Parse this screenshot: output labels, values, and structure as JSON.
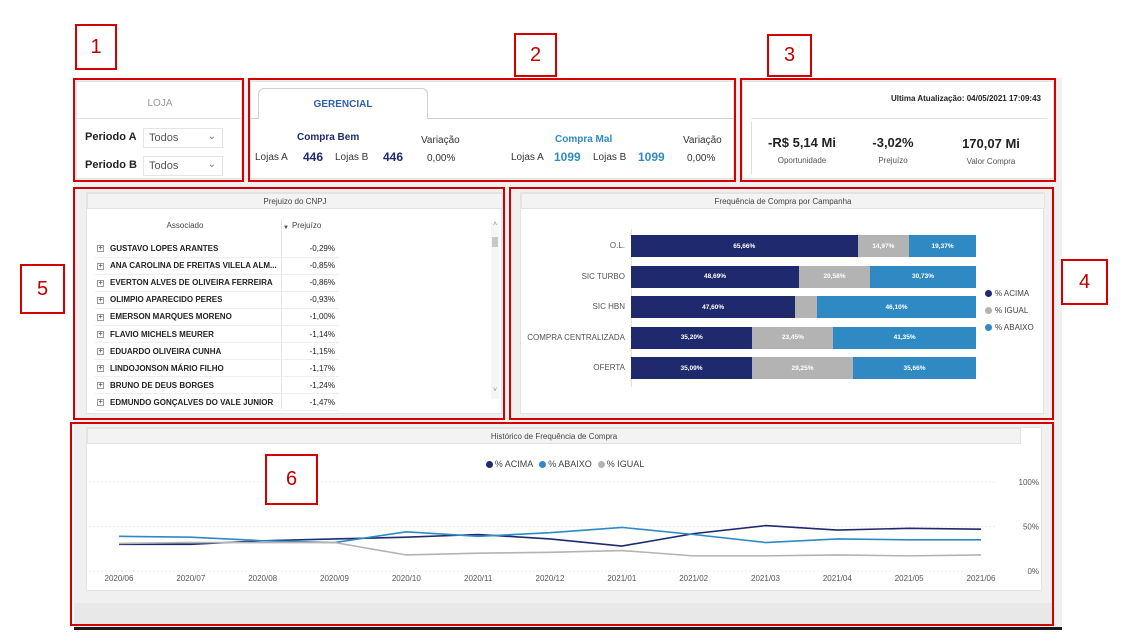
{
  "annotations": [
    "1",
    "2",
    "3",
    "4",
    "5",
    "6"
  ],
  "filters": {
    "tab_label": "LOJA",
    "periodo_a_label": "Periodo A",
    "periodo_a_value": "Todos",
    "periodo_b_label": "Periodo B",
    "periodo_b_value": "Todos"
  },
  "gerencial": {
    "tab_label": "GERENCIAL",
    "compra_bem": {
      "title": "Compra Bem",
      "lojas_a_label": "Lojas A",
      "lojas_a_value": "446",
      "lojas_b_label": "Lojas B",
      "lojas_b_value": "446",
      "variacao_label": "Variação",
      "variacao_value": "0,00%"
    },
    "compra_mal": {
      "title": "Compra Mal",
      "lojas_a_label": "Lojas A",
      "lojas_a_value": "1099",
      "lojas_b_label": "Lojas B",
      "lojas_b_value": "1099",
      "variacao_label": "Variação",
      "variacao_value": "0,00%"
    }
  },
  "kpis": {
    "last_update": "Ultima Atualização: 04/05/2021 17:09:43",
    "oportunidade": {
      "value": "-R$ 5,14 Mi",
      "label": "Oportunidade"
    },
    "prejuizo": {
      "value": "-3,02%",
      "label": "Prejuízo"
    },
    "valor_compra": {
      "value": "170,07 Mi",
      "label": "Valor Compra"
    }
  },
  "cnpj_table": {
    "title": "Prejuizo do CNPJ",
    "col_associado": "Associado",
    "col_prejuizo": "Prejuízo",
    "rows": [
      {
        "name": "GUSTAVO LOPES ARANTES",
        "value": "-0,29%"
      },
      {
        "name": "ANA CAROLINA DE FREITAS VILELA ALM...",
        "value": "-0,85%"
      },
      {
        "name": "EVERTON ALVES DE OLIVEIRA FERREIRA",
        "value": "-0,86%"
      },
      {
        "name": "OLIMPIO APARECIDO PERES",
        "value": "-0,93%"
      },
      {
        "name": "EMERSON MARQUES MORENO",
        "value": "-1,00%"
      },
      {
        "name": "FLAVIO MICHELS MEURER",
        "value": "-1,14%"
      },
      {
        "name": "EDUARDO OLIVEIRA CUNHA",
        "value": "-1,15%"
      },
      {
        "name": "LINDOJONSON MÁRIO FILHO",
        "value": "-1,17%"
      },
      {
        "name": "BRUNO DE DEUS BORGES",
        "value": "-1,24%"
      },
      {
        "name": "EDMUNDO GONÇALVES DO VALE JUNIOR",
        "value": "-1,47%"
      }
    ]
  },
  "colors": {
    "acima": "#1f2a6e",
    "igual": "#b3b3b3",
    "abaixo": "#2f8ac4"
  },
  "chart_data": [
    {
      "type": "bar",
      "orientation": "horizontal-stacked-100",
      "title": "Frequência de Compra por Campanha",
      "categories": [
        "O.L.",
        "SIC TURBO",
        "SIC HBN",
        "COMPRA CENTRALIZADA",
        "OFERTA"
      ],
      "series": [
        {
          "name": "% ACIMA",
          "values": [
            65.66,
            48.69,
            47.6,
            35.2,
            35.09
          ],
          "labels": [
            "65,66%",
            "48,69%",
            "47,60%",
            "35,20%",
            "35,09%"
          ]
        },
        {
          "name": "% IGUAL",
          "values": [
            14.97,
            20.58,
            6.3,
            23.45,
            29.25
          ],
          "labels": [
            "14,97%",
            "20,58%",
            "",
            "23,45%",
            "29,25%"
          ]
        },
        {
          "name": "% ABAIXO",
          "values": [
            19.37,
            30.73,
            46.1,
            41.35,
            35.66
          ],
          "labels": [
            "19,37%",
            "30,73%",
            "46,10%",
            "41,35%",
            "35,66%"
          ]
        }
      ],
      "legend_position": "right"
    },
    {
      "type": "line",
      "title": "Histórico de Frequência de Compra",
      "x": [
        "2020/06",
        "2020/07",
        "2020/08",
        "2020/09",
        "2020/10",
        "2020/11",
        "2020/12",
        "2021/01",
        "2021/02",
        "2021/03",
        "2021/04",
        "2021/05",
        "2021/06"
      ],
      "y_ticks": [
        "100%",
        "50%",
        "0%"
      ],
      "ylim": [
        0,
        100
      ],
      "legend_position": "top",
      "series": [
        {
          "name": "% ACIMA",
          "values": [
            30,
            30,
            34,
            36,
            38,
            41,
            36,
            28,
            42,
            51,
            46,
            48,
            47
          ]
        },
        {
          "name": "% ABAIXO",
          "values": [
            39,
            38,
            34,
            32,
            44,
            39,
            43,
            49,
            41,
            32,
            36,
            35,
            35
          ]
        },
        {
          "name": "% IGUAL",
          "values": [
            31,
            32,
            32,
            32,
            18,
            20,
            21,
            23,
            17,
            17,
            18,
            17,
            18
          ]
        }
      ]
    }
  ]
}
